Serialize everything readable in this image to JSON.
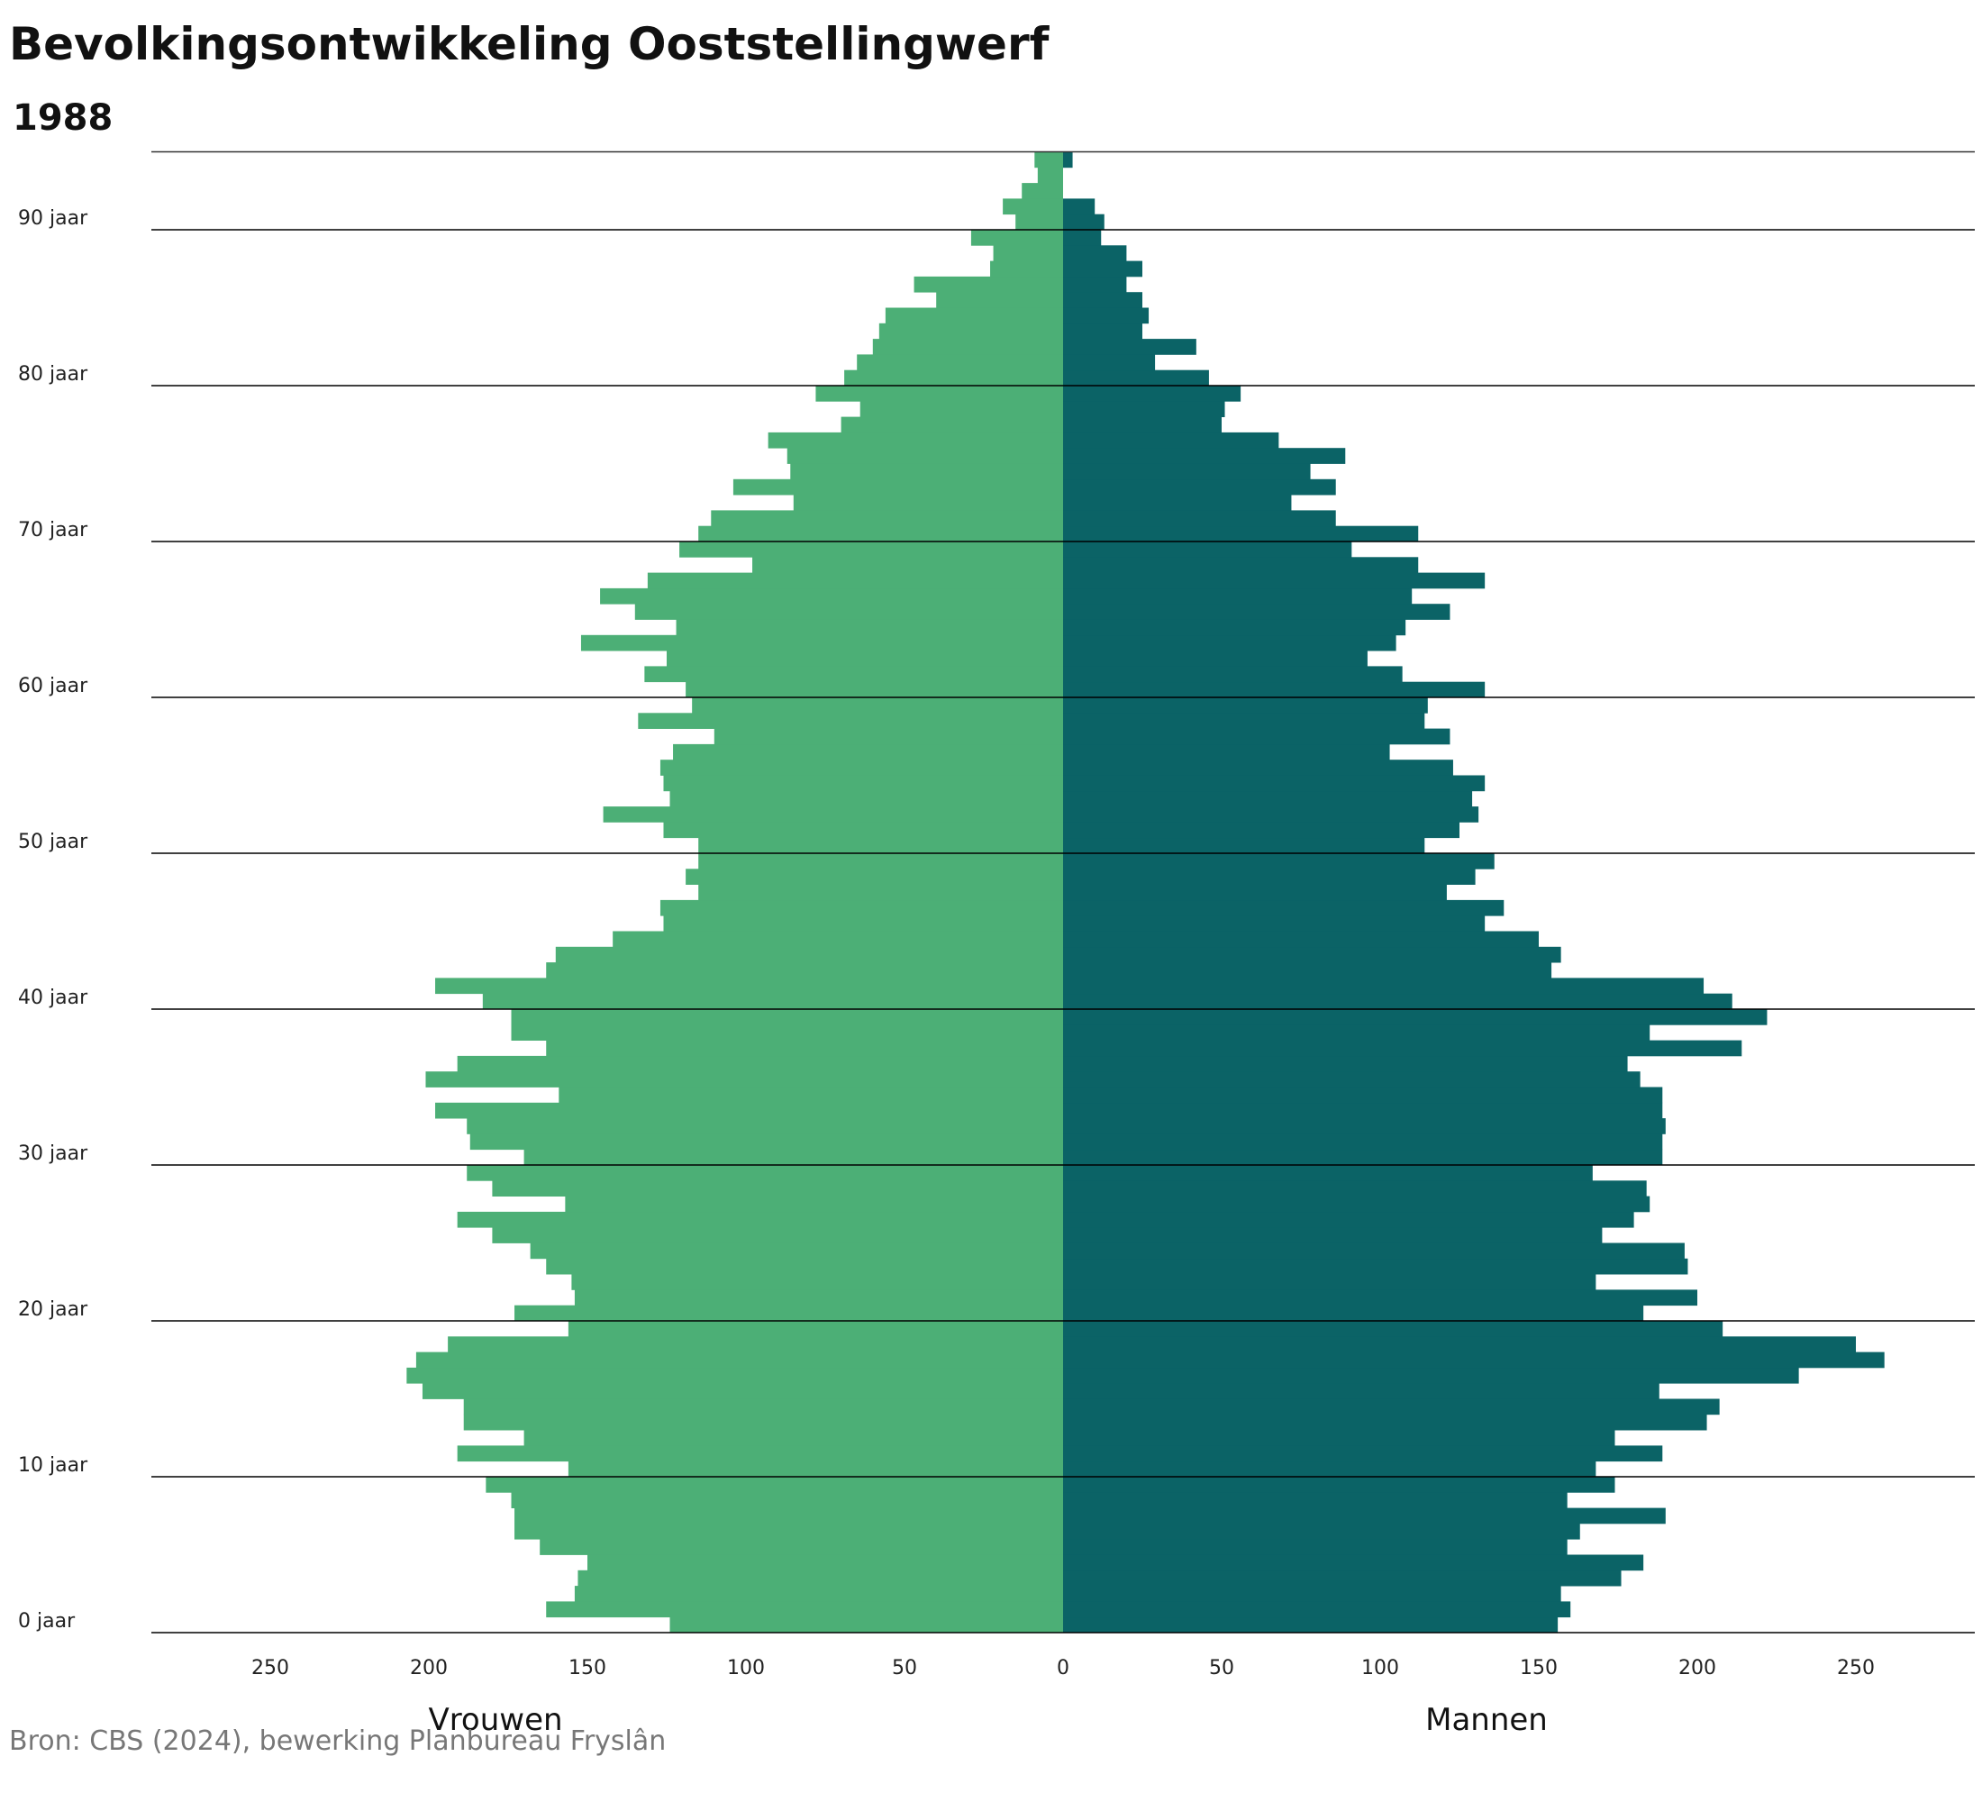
{
  "title": "Bevolkingsontwikkeling Ooststellingwerf",
  "subtitle": "1988",
  "source": "Bron: CBS (2024), bewerking Planbureau Fryslân",
  "chart_data": {
    "type": "bar",
    "orientation": "horizontal population pyramid",
    "categories": [
      0,
      1,
      2,
      3,
      4,
      5,
      6,
      7,
      8,
      9,
      10,
      11,
      12,
      13,
      14,
      15,
      16,
      17,
      18,
      19,
      20,
      21,
      22,
      23,
      24,
      25,
      26,
      27,
      28,
      29,
      30,
      31,
      32,
      33,
      34,
      35,
      36,
      37,
      38,
      39,
      40,
      41,
      42,
      43,
      44,
      45,
      46,
      47,
      48,
      49,
      50,
      51,
      52,
      53,
      54,
      55,
      56,
      57,
      58,
      59,
      60,
      61,
      62,
      63,
      64,
      65,
      66,
      67,
      68,
      69,
      70,
      71,
      72,
      73,
      74,
      75,
      76,
      77,
      78,
      79,
      80,
      81,
      82,
      83,
      84,
      85,
      86,
      87,
      88,
      89,
      90,
      91,
      92,
      93,
      94
    ],
    "y_tick_labels": [
      {
        "age": 0,
        "label": "0 jaar"
      },
      {
        "age": 10,
        "label": "10 jaar"
      },
      {
        "age": 20,
        "label": "20 jaar"
      },
      {
        "age": 30,
        "label": "30 jaar"
      },
      {
        "age": 40,
        "label": "40 jaar"
      },
      {
        "age": 50,
        "label": "50 jaar"
      },
      {
        "age": 60,
        "label": "60 jaar"
      },
      {
        "age": 70,
        "label": "70 jaar"
      },
      {
        "age": 80,
        "label": "80 jaar"
      },
      {
        "age": 90,
        "label": "90 jaar"
      }
    ],
    "x_ticks": [
      250,
      200,
      150,
      100,
      50,
      0,
      50,
      100,
      150,
      200,
      250
    ],
    "xlim": [
      -288,
      288
    ],
    "series": [
      {
        "name": "Vrouwen",
        "color": "#4caf76",
        "values": [
          124,
          163,
          154,
          153,
          150,
          165,
          173,
          173,
          174,
          182,
          156,
          191,
          170,
          189,
          189,
          202,
          207,
          204,
          194,
          156,
          173,
          154,
          155,
          163,
          168,
          180,
          191,
          157,
          180,
          188,
          170,
          187,
          188,
          198,
          159,
          201,
          191,
          163,
          174,
          174,
          183,
          198,
          163,
          160,
          142,
          126,
          127,
          115,
          119,
          115,
          115,
          126,
          145,
          124,
          126,
          127,
          123,
          110,
          134,
          117,
          119,
          132,
          125,
          152,
          122,
          135,
          146,
          131,
          98,
          121,
          115,
          111,
          85,
          104,
          86,
          87,
          93,
          70,
          64,
          78,
          69,
          65,
          60,
          58,
          56,
          40,
          47,
          23,
          22,
          29,
          15,
          19,
          13,
          8,
          9
        ]
      },
      {
        "name": "Mannen",
        "color": "#0b6366",
        "values": [
          156,
          160,
          157,
          176,
          183,
          159,
          163,
          190,
          159,
          174,
          168,
          189,
          174,
          203,
          207,
          188,
          232,
          259,
          250,
          208,
          183,
          200,
          168,
          197,
          196,
          170,
          180,
          185,
          184,
          167,
          189,
          189,
          190,
          189,
          189,
          182,
          178,
          214,
          185,
          222,
          211,
          202,
          154,
          157,
          150,
          133,
          139,
          121,
          130,
          136,
          114,
          125,
          131,
          129,
          133,
          123,
          103,
          122,
          114,
          115,
          133,
          107,
          96,
          105,
          108,
          122,
          110,
          133,
          112,
          91,
          112,
          86,
          72,
          86,
          78,
          89,
          68,
          50,
          51,
          56,
          46,
          29,
          42,
          25,
          27,
          25,
          20,
          25,
          20,
          12,
          13,
          10,
          0,
          0,
          3
        ]
      }
    ],
    "legend": [
      "Vrouwen",
      "Mannen"
    ],
    "grid": "horizontal lines every 10 years"
  }
}
